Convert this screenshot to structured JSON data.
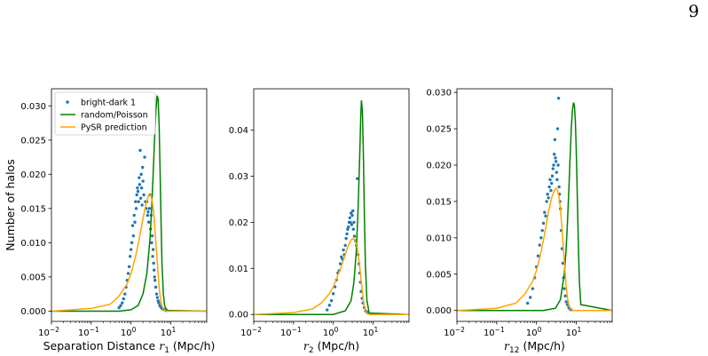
{
  "page_number": "9",
  "shared": {
    "ylabel": "Number of halos",
    "legend": {
      "placement": "top-left",
      "entries": [
        {
          "label": "bright-dark 1",
          "kind": "marker",
          "color": "#1f77b4"
        },
        {
          "label": "random/Poisson",
          "kind": "line",
          "color": "#008000"
        },
        {
          "label": "PySR prediction",
          "kind": "line",
          "color": "#ffa500"
        }
      ]
    }
  },
  "chart_data": [
    {
      "type": "line",
      "xscale": "log",
      "xlim": [
        0.01,
        80
      ],
      "ylim": [
        -0.0015,
        0.0325
      ],
      "xticks": [
        0.01,
        0.1,
        1,
        10
      ],
      "xticklabels": [
        {
          "m": "10",
          "e": "−2"
        },
        {
          "m": "10",
          "e": "−1"
        },
        {
          "m": "10",
          "e": "0"
        },
        {
          "m": "10",
          "e": "1"
        }
      ],
      "yticks": [
        0.0,
        0.005,
        0.01,
        0.015,
        0.02,
        0.025,
        0.03
      ],
      "yticklabels": [
        "0.000",
        "0.005",
        "0.010",
        "0.015",
        "0.020",
        "0.025",
        "0.030"
      ],
      "xlabel": {
        "pre": "Separation Distance ",
        "var": "r",
        "sub": "1",
        "post": " (Mpc/h)"
      },
      "series": [
        {
          "name": "bright-dark 1",
          "style": "scatter",
          "color": "#1f77b4",
          "x": [
            0.5,
            0.55,
            0.6,
            0.65,
            0.7,
            0.75,
            0.8,
            0.85,
            0.9,
            0.95,
            1.0,
            1.05,
            1.1,
            1.15,
            1.2,
            1.25,
            1.3,
            1.35,
            1.4,
            1.45,
            1.5,
            1.55,
            1.6,
            1.65,
            1.7,
            1.75,
            1.8,
            1.85,
            1.9,
            1.95,
            2.0,
            2.1,
            2.2,
            2.3,
            2.4,
            2.5,
            2.6,
            2.7,
            2.8,
            2.9,
            3.0,
            3.1,
            3.2,
            3.3,
            3.4,
            3.5,
            3.6,
            3.7,
            3.8,
            3.9,
            4.0,
            4.2,
            4.4,
            4.6,
            4.8,
            5.0,
            5.3,
            5.6,
            6.0,
            6.5,
            7.0,
            7.5,
            8.0
          ],
          "y": [
            0.0005,
            0.0008,
            0.0012,
            0.0018,
            0.0025,
            0.0035,
            0.0045,
            0.0055,
            0.0065,
            0.008,
            0.009,
            0.01,
            0.0125,
            0.011,
            0.014,
            0.013,
            0.016,
            0.015,
            0.017,
            0.018,
            0.0175,
            0.016,
            0.0195,
            0.0185,
            0.0235,
            0.0165,
            0.02,
            0.018,
            0.0155,
            0.021,
            0.019,
            0.017,
            0.0225,
            0.016,
            0.015,
            0.016,
            0.014,
            0.0145,
            0.013,
            0.015,
            0.017,
            0.012,
            0.014,
            0.01,
            0.011,
            0.008,
            0.009,
            0.007,
            0.006,
            0.005,
            0.0045,
            0.0035,
            0.0025,
            0.002,
            0.0015,
            0.0012,
            0.0008,
            0.0006,
            0.0004,
            0.0003,
            0.0002,
            0.0001,
            0.0001
          ]
        },
        {
          "name": "random/Poisson",
          "style": "line",
          "color": "#008000",
          "x": [
            0.01,
            0.5,
            1.0,
            1.5,
            2.0,
            2.5,
            3.0,
            3.3,
            3.6,
            3.9,
            4.2,
            4.5,
            4.8,
            5.1,
            5.4,
            5.7,
            6.0,
            6.5,
            7.0,
            8.0,
            80
          ],
          "y": [
            0.0,
            0.0,
            0.0002,
            0.0008,
            0.0025,
            0.0055,
            0.0105,
            0.015,
            0.02,
            0.025,
            0.029,
            0.0315,
            0.031,
            0.027,
            0.02,
            0.013,
            0.007,
            0.0025,
            0.0008,
            0.0001,
            0.0
          ]
        },
        {
          "name": "PySR prediction",
          "style": "line",
          "color": "#ffa500",
          "x": [
            0.01,
            0.1,
            0.3,
            0.5,
            0.8,
            1.0,
            1.3,
            1.6,
            2.0,
            2.4,
            2.8,
            3.1,
            3.4,
            3.7,
            4.0,
            4.4,
            4.8,
            5.2,
            5.6,
            6.0,
            7.0,
            8.0,
            80
          ],
          "y": [
            0.0,
            0.0004,
            0.001,
            0.0022,
            0.004,
            0.0055,
            0.008,
            0.0105,
            0.0135,
            0.0158,
            0.017,
            0.017,
            0.0162,
            0.0145,
            0.0118,
            0.0085,
            0.0055,
            0.003,
            0.0015,
            0.0007,
            0.0001,
            0.0,
            0.0
          ]
        }
      ]
    },
    {
      "type": "line",
      "xscale": "log",
      "xlim": [
        0.01,
        80
      ],
      "ylim": [
        -0.0015,
        0.049
      ],
      "xticks": [
        0.01,
        0.1,
        1,
        10
      ],
      "xticklabels": [
        {
          "m": "10",
          "e": "−2"
        },
        {
          "m": "10",
          "e": "−1"
        },
        {
          "m": "10",
          "e": "0"
        },
        {
          "m": "10",
          "e": "1"
        }
      ],
      "yticks": [
        0.0,
        0.01,
        0.02,
        0.03,
        0.04
      ],
      "yticklabels": [
        "0.00",
        "0.01",
        "0.02",
        "0.03",
        "0.04"
      ],
      "xlabel": {
        "pre": "",
        "var": "r",
        "sub": "2",
        "post": " (Mpc/h)"
      },
      "series": [
        {
          "name": "bright-dark 1",
          "style": "scatter",
          "color": "#1f77b4",
          "x": [
            0.7,
            0.8,
            0.9,
            1.0,
            1.1,
            1.2,
            1.3,
            1.4,
            1.5,
            1.6,
            1.7,
            1.8,
            1.9,
            2.0,
            2.1,
            2.2,
            2.3,
            2.4,
            2.5,
            2.6,
            2.7,
            2.8,
            2.9,
            3.0,
            3.1,
            3.2,
            3.3,
            3.4,
            3.6,
            3.8,
            4.0,
            4.2,
            4.4,
            4.6,
            4.8,
            5.0,
            5.3,
            5.6,
            6.0,
            6.5,
            7.0,
            7.5
          ],
          "y": [
            0.001,
            0.002,
            0.003,
            0.0045,
            0.006,
            0.0075,
            0.009,
            0.0095,
            0.011,
            0.0125,
            0.012,
            0.014,
            0.013,
            0.015,
            0.0165,
            0.0175,
            0.0185,
            0.019,
            0.02,
            0.021,
            0.02,
            0.022,
            0.0195,
            0.0215,
            0.0225,
            0.0185,
            0.02,
            0.017,
            0.016,
            0.015,
            0.0295,
            0.013,
            0.011,
            0.009,
            0.007,
            0.005,
            0.0035,
            0.0025,
            0.0015,
            0.0008,
            0.0005,
            0.0003
          ]
        },
        {
          "name": "random/Poisson",
          "style": "line",
          "color": "#008000",
          "x": [
            0.01,
            1.0,
            2.0,
            2.8,
            3.3,
            3.8,
            4.2,
            4.6,
            4.9,
            5.1,
            5.4,
            5.7,
            6.0,
            6.4,
            7.0,
            8.0,
            80
          ],
          "y": [
            0.0,
            0.0,
            0.0008,
            0.003,
            0.007,
            0.014,
            0.023,
            0.034,
            0.043,
            0.0465,
            0.044,
            0.035,
            0.023,
            0.011,
            0.003,
            0.0003,
            0.0
          ]
        },
        {
          "name": "PySR prediction",
          "style": "line",
          "color": "#ffa500",
          "x": [
            0.01,
            0.1,
            0.3,
            0.5,
            0.8,
            1.0,
            1.3,
            1.6,
            2.0,
            2.4,
            2.8,
            3.2,
            3.6,
            4.0,
            4.4,
            4.8,
            5.2,
            5.6,
            6.0,
            6.5,
            7.0,
            8.0,
            80
          ],
          "y": [
            0.0,
            0.0004,
            0.0012,
            0.0025,
            0.0045,
            0.006,
            0.0085,
            0.0105,
            0.013,
            0.015,
            0.0162,
            0.0165,
            0.016,
            0.0145,
            0.012,
            0.009,
            0.006,
            0.0035,
            0.0018,
            0.0008,
            0.0003,
            0.0,
            0.0
          ]
        }
      ]
    },
    {
      "type": "line",
      "xscale": "log",
      "xlim": [
        0.01,
        80
      ],
      "ylim": [
        -0.0015,
        0.0305
      ],
      "xticks": [
        0.01,
        0.1,
        1,
        10
      ],
      "xticklabels": [
        {
          "m": "10",
          "e": "−2"
        },
        {
          "m": "10",
          "e": "−1"
        },
        {
          "m": "10",
          "e": "0"
        },
        {
          "m": "10",
          "e": "1"
        }
      ],
      "yticks": [
        0.0,
        0.005,
        0.01,
        0.015,
        0.02,
        0.025,
        0.03
      ],
      "yticklabels": [
        "0.000",
        "0.005",
        "0.010",
        "0.015",
        "0.020",
        "0.025",
        "0.030"
      ],
      "xlabel": {
        "pre": "",
        "var": "r",
        "sub": "12",
        "post": " (Mpc/h)"
      },
      "series": [
        {
          "name": "bright-dark 1",
          "style": "scatter",
          "color": "#1f77b4",
          "x": [
            0.6,
            0.7,
            0.8,
            0.9,
            1.0,
            1.1,
            1.2,
            1.3,
            1.4,
            1.5,
            1.6,
            1.7,
            1.8,
            1.9,
            2.0,
            2.1,
            2.2,
            2.3,
            2.4,
            2.5,
            2.6,
            2.7,
            2.8,
            2.9,
            3.0,
            3.1,
            3.2,
            3.3,
            3.4,
            3.5,
            3.6,
            3.7,
            3.8,
            3.9,
            4.0,
            4.2,
            4.4,
            4.6,
            4.8,
            5.0,
            5.3,
            5.6,
            6.0,
            6.5,
            7.0,
            7.5
          ],
          "y": [
            0.001,
            0.0018,
            0.003,
            0.0045,
            0.006,
            0.0075,
            0.009,
            0.01,
            0.011,
            0.012,
            0.0135,
            0.013,
            0.015,
            0.016,
            0.0155,
            0.017,
            0.018,
            0.0165,
            0.0175,
            0.0185,
            0.0195,
            0.02,
            0.0215,
            0.0235,
            0.021,
            0.0205,
            0.019,
            0.018,
            0.025,
            0.02,
            0.0292,
            0.017,
            0.016,
            0.015,
            0.014,
            0.011,
            0.0085,
            0.0065,
            0.0045,
            0.003,
            0.002,
            0.0012,
            0.0008,
            0.0004,
            0.0002,
            0.0001
          ]
        },
        {
          "name": "random/Poisson",
          "style": "line",
          "color": "#008000",
          "x": [
            0.01,
            1.5,
            3.0,
            4.0,
            5.0,
            5.5,
            6.0,
            6.5,
            7.0,
            7.5,
            8.0,
            8.5,
            9.0,
            9.5,
            10.0,
            10.5,
            11.0,
            11.5,
            12.0,
            13.0,
            80
          ],
          "y": [
            0.0,
            0.0,
            0.0003,
            0.0015,
            0.005,
            0.008,
            0.012,
            0.0165,
            0.021,
            0.025,
            0.0275,
            0.0286,
            0.0282,
            0.026,
            0.022,
            0.017,
            0.012,
            0.0075,
            0.004,
            0.0008,
            0.0
          ]
        },
        {
          "name": "PySR prediction",
          "style": "line",
          "color": "#ffa500",
          "x": [
            0.01,
            0.1,
            0.3,
            0.5,
            0.8,
            1.0,
            1.3,
            1.6,
            2.0,
            2.4,
            2.8,
            3.1,
            3.4,
            3.7,
            4.0,
            4.4,
            4.8,
            5.2,
            5.6,
            6.0,
            6.5,
            7.0,
            8.0,
            80
          ],
          "y": [
            0.0,
            0.0003,
            0.001,
            0.0022,
            0.004,
            0.0055,
            0.008,
            0.0105,
            0.0135,
            0.0155,
            0.0165,
            0.0168,
            0.0165,
            0.0155,
            0.014,
            0.0112,
            0.0082,
            0.0055,
            0.0032,
            0.0018,
            0.0008,
            0.0003,
            0.0,
            0.0
          ]
        }
      ]
    }
  ]
}
